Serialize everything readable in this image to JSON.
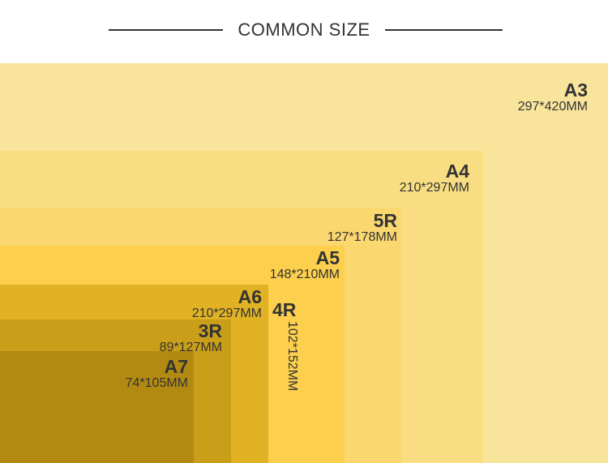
{
  "header": {
    "title": "COMMON SIZE"
  },
  "sizes": {
    "a3": {
      "name": "A3",
      "dims": "297*420MM",
      "color": "#F9E49C"
    },
    "a4": {
      "name": "A4",
      "dims": "210*297MM",
      "color": "#F8DD82"
    },
    "r5": {
      "name": "5R",
      "dims": "127*178MM",
      "color": "#FBD770"
    },
    "a5": {
      "name": "A5",
      "dims": "148*210MM",
      "color": "#FCCF4D"
    },
    "a6": {
      "name": "A6",
      "dims": "210*297MM",
      "color": "#E0B224"
    },
    "r4": {
      "name": "4R",
      "dims": "102*152MM",
      "color": "#FCCF4D"
    },
    "r3": {
      "name": "3R",
      "dims": "89*127MM",
      "color": "#C99E18"
    },
    "a7": {
      "name": "A7",
      "dims": "74*105MM",
      "color": "#B28A12"
    }
  }
}
